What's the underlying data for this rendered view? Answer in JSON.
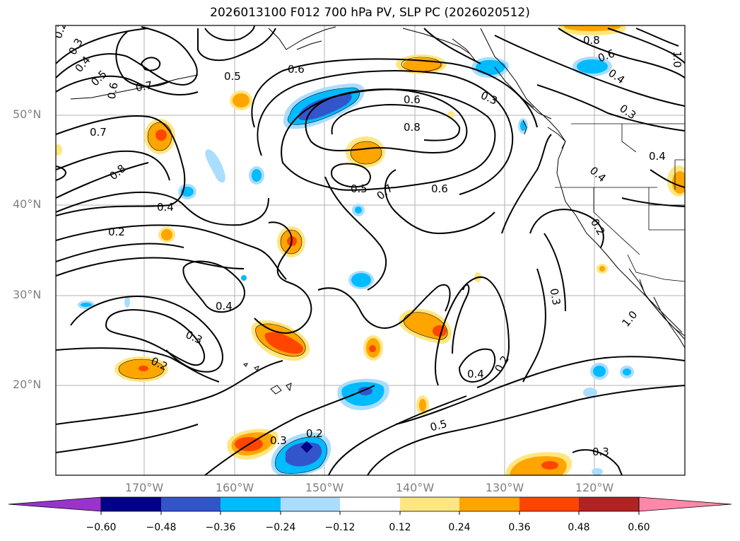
{
  "title": "2026013100 F012 700 hPa PV, SLP PC (2026020512)",
  "lat_labels": [
    "50°N",
    "40°N",
    "30°N",
    "20°N"
  ],
  "lon_labels": [
    "170°W",
    "160°W",
    "150°W",
    "140°W",
    "130°W",
    "120°W"
  ],
  "colorbar": {
    "ticks": [
      "−0.60",
      "−0.48",
      "−0.36",
      "−0.24",
      "−0.12",
      "0.12",
      "0.24",
      "0.36",
      "0.48",
      "0.60"
    ],
    "colors": [
      "#9933cc",
      "#000088",
      "#3355cc",
      "#00bbff",
      "#aaddff",
      "#ffffff",
      "#ffe680",
      "#ffa500",
      "#ff4500",
      "#b22222",
      "#ff88aa"
    ]
  },
  "contour_labels": [
    "0.2",
    "0.3",
    "0.4",
    "0.6",
    "0.5",
    "0.7",
    "0.5",
    "0.6",
    "0.7",
    "0.8",
    "0.8",
    "0.6",
    "0.5",
    "0.7",
    "0.6",
    "0.4",
    "0.2",
    "0.4",
    "0.3",
    "0.2",
    "0.3",
    "0.2",
    "0.5",
    "0.4",
    "0.2",
    "0.3",
    "0.3",
    "0.2",
    "0.4",
    "1.0",
    "0.8",
    "0.6",
    "0.4",
    "0.3",
    "0.4",
    "1.0",
    "0.3"
  ]
}
